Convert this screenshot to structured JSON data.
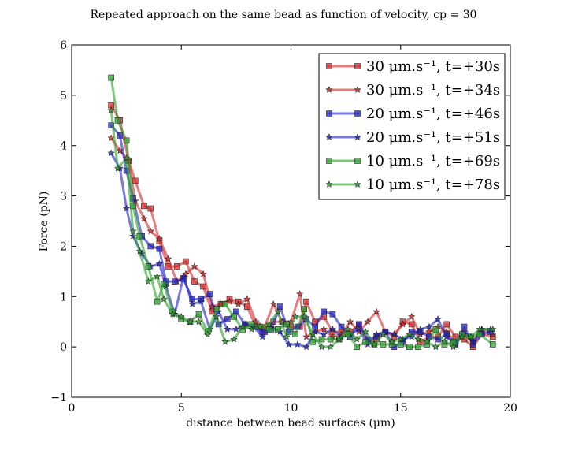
{
  "chart_data": {
    "type": "line",
    "title": "Repeated approach on the same bead as function of velocity, cp = 30",
    "xlabel": "distance between bead surfaces (μm)",
    "ylabel": "Force (pN)",
    "xlim": [
      0,
      20
    ],
    "ylim": [
      -1,
      6
    ],
    "xticks": [
      "0",
      "5",
      "10",
      "15",
      "20"
    ],
    "yticks": [
      "−1",
      "0",
      "1",
      "2",
      "3",
      "4",
      "5",
      "6"
    ],
    "legend_position": "top-right",
    "series": [
      {
        "name": "30 μm.s⁻¹, t=+30s",
        "color": "#d62728",
        "marker": "square",
        "x": [
          1.8,
          2.2,
          2.6,
          2.9,
          3.3,
          3.6,
          4.0,
          4.4,
          4.8,
          5.2,
          5.6,
          6.0,
          6.4,
          6.8,
          7.2,
          7.6,
          8.0,
          8.4,
          8.8,
          9.2,
          9.6,
          10.0,
          10.4,
          10.7,
          11.1,
          11.5,
          11.9,
          12.3,
          12.7,
          13.1,
          13.5,
          13.9,
          14.3,
          14.7,
          15.1,
          15.5,
          15.9,
          16.3,
          16.7,
          17.1,
          17.5,
          17.9,
          18.3,
          18.7,
          19.2
        ],
        "y": [
          4.8,
          4.5,
          3.7,
          3.3,
          2.8,
          2.75,
          2.1,
          1.6,
          1.6,
          1.7,
          1.3,
          1.2,
          0.7,
          0.85,
          0.95,
          0.9,
          0.8,
          0.4,
          0.3,
          0.5,
          0.5,
          0.4,
          0.4,
          0.9,
          0.5,
          0.6,
          0.3,
          0.3,
          0.3,
          0.45,
          0.1,
          0.15,
          0.3,
          0.2,
          0.5,
          0.45,
          0.1,
          0.2,
          0.2,
          0.45,
          0.2,
          0.15,
          0.0,
          0.25,
          0.2
        ]
      },
      {
        "name": "30 μm.s⁻¹, t=+34s",
        "color": "#d62728",
        "marker": "star",
        "x": [
          1.8,
          2.2,
          2.6,
          2.9,
          3.3,
          3.6,
          4.0,
          4.4,
          4.8,
          5.2,
          5.6,
          6.0,
          6.4,
          6.8,
          7.2,
          7.6,
          8.0,
          8.4,
          8.8,
          9.2,
          9.6,
          10.0,
          10.4,
          10.7,
          11.1,
          11.5,
          11.9,
          12.3,
          12.7,
          13.1,
          13.5,
          13.9,
          14.3,
          14.7,
          15.1,
          15.5,
          15.9,
          16.3,
          16.7,
          17.1,
          17.5,
          17.9,
          18.3,
          18.7,
          19.2
        ],
        "y": [
          4.15,
          3.9,
          3.7,
          2.9,
          2.55,
          2.3,
          2.15,
          1.75,
          1.3,
          1.45,
          1.6,
          1.45,
          0.8,
          0.85,
          0.9,
          0.85,
          0.95,
          0.5,
          0.4,
          0.85,
          0.5,
          0.5,
          1.05,
          0.2,
          0.3,
          0.35,
          0.2,
          0.25,
          0.5,
          0.3,
          0.5,
          0.7,
          0.3,
          0.25,
          0.45,
          0.6,
          0.25,
          0.3,
          0.4,
          0.3,
          0.1,
          0.25,
          0.1,
          0.35,
          0.25
        ]
      },
      {
        "name": "20 μm.s⁻¹, t=+46s",
        "color": "#1f1fc8",
        "marker": "square",
        "x": [
          1.8,
          2.2,
          2.5,
          2.8,
          3.2,
          3.6,
          4.0,
          4.3,
          4.7,
          5.1,
          5.5,
          5.9,
          6.3,
          6.7,
          7.1,
          7.5,
          7.9,
          8.3,
          8.7,
          9.1,
          9.5,
          9.9,
          10.3,
          10.7,
          11.1,
          11.5,
          11.9,
          12.3,
          12.7,
          13.1,
          13.5,
          13.9,
          14.3,
          14.7,
          15.1,
          15.5,
          15.9,
          16.3,
          16.7,
          17.1,
          17.5,
          17.9,
          18.3,
          18.7,
          19.1
        ],
        "y": [
          4.4,
          4.2,
          3.5,
          2.95,
          2.2,
          2.0,
          1.95,
          1.3,
          1.3,
          1.35,
          0.95,
          0.95,
          1.05,
          0.45,
          0.55,
          0.7,
          0.45,
          0.4,
          0.3,
          0.35,
          0.8,
          0.3,
          0.4,
          0.55,
          0.4,
          0.7,
          0.65,
          0.4,
          0.2,
          0.45,
          0.15,
          0.2,
          0.3,
          0.0,
          0.1,
          0.3,
          0.3,
          0.2,
          0.15,
          0.25,
          0.05,
          0.4,
          0.05,
          0.25,
          0.3
        ]
      },
      {
        "name": "20 μm.s⁻¹, t=+51s",
        "color": "#1f1fc8",
        "marker": "star",
        "x": [
          1.8,
          2.2,
          2.5,
          2.8,
          3.2,
          3.6,
          4.0,
          4.3,
          4.7,
          5.1,
          5.5,
          5.9,
          6.3,
          6.7,
          7.1,
          7.5,
          7.9,
          8.3,
          8.7,
          9.1,
          9.5,
          9.9,
          10.3,
          10.7,
          11.1,
          11.5,
          11.9,
          12.3,
          12.7,
          13.1,
          13.5,
          13.9,
          14.3,
          14.7,
          15.1,
          15.5,
          15.9,
          16.3,
          16.7,
          17.1,
          17.5,
          17.9,
          18.3,
          18.7,
          19.1
        ],
        "y": [
          3.85,
          3.55,
          2.75,
          2.2,
          1.85,
          1.6,
          1.65,
          1.2,
          0.65,
          1.4,
          0.85,
          0.9,
          0.35,
          0.7,
          0.35,
          0.35,
          0.45,
          0.4,
          0.2,
          0.4,
          0.3,
          0.05,
          0.05,
          0.0,
          0.3,
          0.25,
          0.35,
          0.2,
          0.25,
          0.35,
          0.05,
          0.25,
          0.3,
          0.25,
          0.15,
          0.2,
          0.35,
          0.4,
          0.55,
          0.2,
          0.05,
          0.3,
          0.1,
          0.35,
          0.35
        ]
      },
      {
        "name": "10 μm.s⁻¹, t=+69s",
        "color": "#2ca02c",
        "marker": "square",
        "x": [
          1.8,
          2.1,
          2.5,
          2.8,
          3.1,
          3.5,
          3.9,
          4.2,
          4.6,
          5.0,
          5.4,
          5.8,
          6.2,
          6.6,
          7.0,
          7.4,
          7.8,
          8.2,
          8.6,
          9.0,
          9.4,
          9.8,
          10.2,
          10.6,
          11.0,
          11.4,
          11.8,
          12.2,
          12.6,
          13.0,
          13.4,
          13.8,
          14.2,
          14.6,
          15.0,
          15.4,
          15.8,
          16.2,
          16.6,
          17.0,
          17.4,
          17.8,
          18.2,
          18.6,
          19.2
        ],
        "y": [
          5.35,
          4.5,
          4.1,
          2.8,
          2.2,
          1.6,
          0.9,
          1.25,
          0.7,
          0.55,
          0.5,
          0.65,
          0.3,
          0.75,
          0.85,
          0.6,
          0.35,
          0.45,
          0.4,
          0.35,
          0.35,
          0.45,
          0.25,
          0.75,
          0.1,
          0.15,
          0.15,
          0.15,
          0.25,
          0.0,
          0.1,
          0.05,
          0.05,
          0.05,
          0.05,
          0.0,
          0.0,
          0.05,
          0.35,
          0.05,
          0.1,
          0.25,
          0.2,
          0.25,
          0.05
        ]
      },
      {
        "name": "10 μm.s⁻¹, t=+78s",
        "color": "#2ca02c",
        "marker": "star",
        "x": [
          1.8,
          2.1,
          2.5,
          2.8,
          3.1,
          3.5,
          3.9,
          4.2,
          4.6,
          5.0,
          5.4,
          5.8,
          6.2,
          6.6,
          7.0,
          7.4,
          7.8,
          8.2,
          8.6,
          9.0,
          9.4,
          9.8,
          10.2,
          10.6,
          11.0,
          11.4,
          11.8,
          12.2,
          12.6,
          13.0,
          13.4,
          13.8,
          14.2,
          14.6,
          15.0,
          15.4,
          15.8,
          16.2,
          16.6,
          17.0,
          17.4,
          17.8,
          18.2,
          18.6,
          19.2
        ],
        "y": [
          4.7,
          3.55,
          3.75,
          2.3,
          1.9,
          1.3,
          1.4,
          0.95,
          0.65,
          0.6,
          0.5,
          0.5,
          0.25,
          0.6,
          0.1,
          0.15,
          0.4,
          0.35,
          0.4,
          0.45,
          0.7,
          0.2,
          0.6,
          0.6,
          0.25,
          0.0,
          0.0,
          0.15,
          0.35,
          0.15,
          0.3,
          0.05,
          0.25,
          0.1,
          0.15,
          0.25,
          0.15,
          0.1,
          0.0,
          0.1,
          0.0,
          0.2,
          0.2,
          0.35,
          0.35
        ]
      }
    ]
  }
}
